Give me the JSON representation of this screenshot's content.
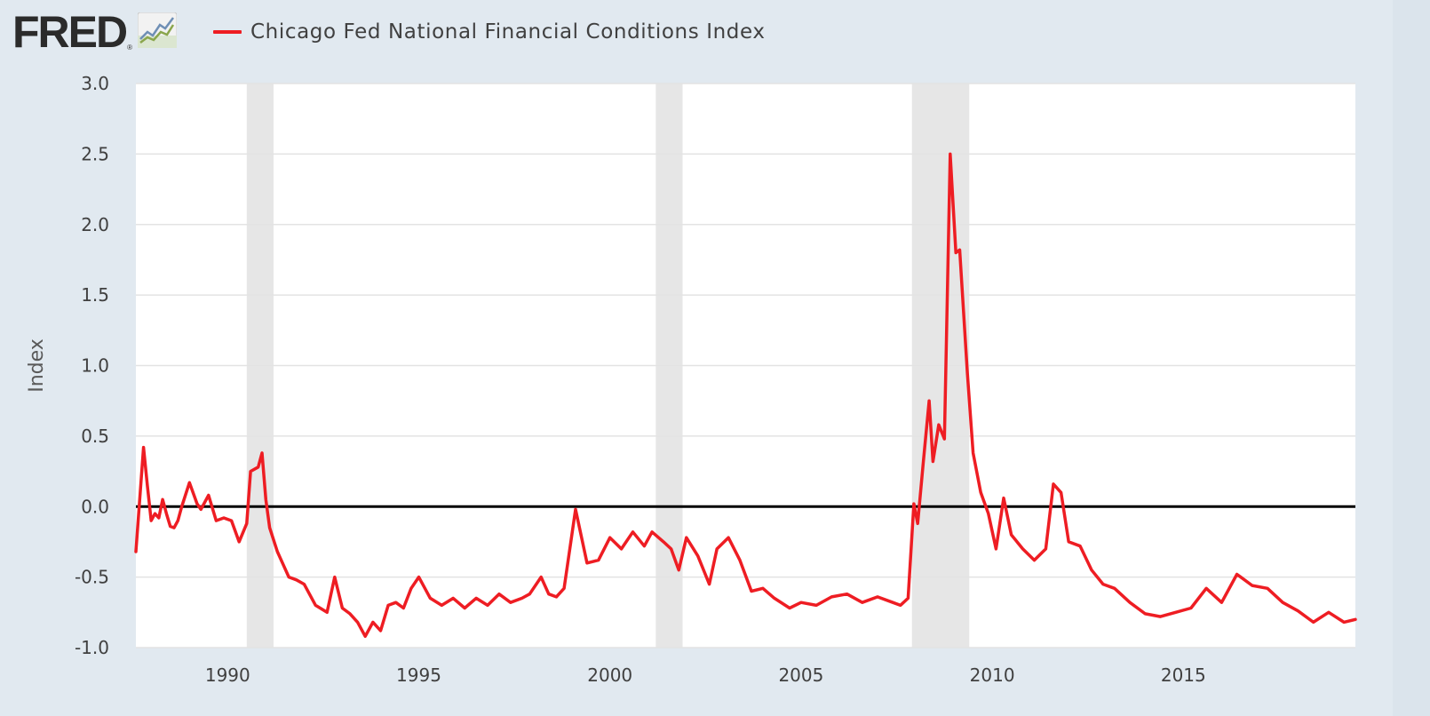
{
  "header": {
    "logo_text": "FRED",
    "logo_reg_mark": "®",
    "logo_icon": "line-chart-icon",
    "legend_label": "Chicago Fed National Financial Conditions Index",
    "legend_color": "#ee1d23"
  },
  "colors": {
    "background": "#e1e9f0",
    "plot_background": "#ffffff",
    "gridline": "#e3e3e3",
    "recession_band": "#e6e6e6",
    "zero_line": "#000000",
    "series_line": "#ee1d23"
  },
  "chart_data": {
    "type": "line",
    "title": "Chicago Fed National Financial Conditions Index",
    "xlabel": "",
    "ylabel": "Index",
    "xlim": [
      1987.6,
      2019.5
    ],
    "ylim": [
      -1.0,
      3.0
    ],
    "y_ticks": [
      "3.0",
      "2.5",
      "2.0",
      "1.5",
      "1.0",
      "0.5",
      "0.0",
      "-0.5",
      "-1.0"
    ],
    "x_ticks": [
      "1990",
      "1995",
      "2000",
      "2005",
      "2010",
      "2015"
    ],
    "grid": true,
    "zero_line": true,
    "recessions": [
      [
        1990.5,
        1991.2
      ],
      [
        2001.2,
        2001.9
      ],
      [
        2007.9,
        2009.4
      ]
    ],
    "series": [
      {
        "name": "Chicago Fed National Financial Conditions Index",
        "x": [
          1987.6,
          1987.7,
          1987.8,
          1987.9,
          1988.0,
          1988.1,
          1988.2,
          1988.3,
          1988.4,
          1988.5,
          1988.6,
          1988.7,
          1988.8,
          1989.0,
          1989.2,
          1989.3,
          1989.5,
          1989.7,
          1989.9,
          1990.1,
          1990.3,
          1990.5,
          1990.6,
          1990.8,
          1990.9,
          1991.0,
          1991.1,
          1991.3,
          1991.6,
          1991.8,
          1992.0,
          1992.3,
          1992.6,
          1992.8,
          1993.0,
          1993.2,
          1993.4,
          1993.6,
          1993.8,
          1994.0,
          1994.2,
          1994.4,
          1994.6,
          1994.8,
          1995.0,
          1995.3,
          1995.6,
          1995.9,
          1996.2,
          1996.5,
          1996.8,
          1997.1,
          1997.4,
          1997.7,
          1997.9,
          1998.2,
          1998.4,
          1998.6,
          1998.8,
          1999.1,
          1999.4,
          1999.7,
          2000.0,
          2000.3,
          2000.6,
          2000.9,
          2001.1,
          2001.4,
          2001.6,
          2001.8,
          2002.0,
          2002.3,
          2002.6,
          2002.8,
          2003.1,
          2003.4,
          2003.7,
          2004.0,
          2004.3,
          2004.7,
          2005.0,
          2005.4,
          2005.8,
          2006.2,
          2006.6,
          2007.0,
          2007.4,
          2007.6,
          2007.8,
          2007.95,
          2008.05,
          2008.2,
          2008.35,
          2008.45,
          2008.6,
          2008.75,
          2008.9,
          2009.05,
          2009.15,
          2009.35,
          2009.5,
          2009.7,
          2009.9,
          2010.1,
          2010.3,
          2010.5,
          2010.8,
          2011.1,
          2011.4,
          2011.6,
          2011.8,
          2012.0,
          2012.3,
          2012.6,
          2012.9,
          2013.2,
          2013.6,
          2014.0,
          2014.4,
          2014.8,
          2015.2,
          2015.6,
          2016.0,
          2016.4,
          2016.8,
          2017.2,
          2017.6,
          2018.0,
          2018.4,
          2018.8,
          2019.2,
          2019.5
        ],
        "values": [
          -0.32,
          0.05,
          0.42,
          0.15,
          -0.1,
          -0.05,
          -0.08,
          0.05,
          -0.05,
          -0.14,
          -0.15,
          -0.1,
          0.0,
          0.17,
          0.02,
          -0.02,
          0.08,
          -0.1,
          -0.08,
          -0.1,
          -0.25,
          -0.12,
          0.25,
          0.28,
          0.38,
          0.05,
          -0.15,
          -0.32,
          -0.5,
          -0.52,
          -0.55,
          -0.7,
          -0.75,
          -0.5,
          -0.72,
          -0.76,
          -0.82,
          -0.92,
          -0.82,
          -0.88,
          -0.7,
          -0.68,
          -0.72,
          -0.58,
          -0.5,
          -0.65,
          -0.7,
          -0.65,
          -0.72,
          -0.65,
          -0.7,
          -0.62,
          -0.68,
          -0.65,
          -0.62,
          -0.5,
          -0.62,
          -0.64,
          -0.58,
          -0.02,
          -0.4,
          -0.38,
          -0.22,
          -0.3,
          -0.18,
          -0.28,
          -0.18,
          -0.25,
          -0.3,
          -0.45,
          -0.22,
          -0.35,
          -0.55,
          -0.3,
          -0.22,
          -0.38,
          -0.6,
          -0.58,
          -0.65,
          -0.72,
          -0.68,
          -0.7,
          -0.64,
          -0.62,
          -0.68,
          -0.64,
          -0.68,
          -0.7,
          -0.65,
          0.02,
          -0.12,
          0.32,
          0.75,
          0.32,
          0.58,
          0.48,
          2.5,
          1.8,
          1.82,
          0.95,
          0.38,
          0.1,
          -0.05,
          -0.3,
          0.06,
          -0.2,
          -0.3,
          -0.38,
          -0.3,
          0.16,
          0.1,
          -0.25,
          -0.28,
          -0.45,
          -0.55,
          -0.58,
          -0.68,
          -0.76,
          -0.78,
          -0.75,
          -0.72,
          -0.58,
          -0.68,
          -0.48,
          -0.56,
          -0.58,
          -0.68,
          -0.74,
          -0.82,
          -0.75,
          -0.82,
          -0.8
        ],
        "color": "#ee1d23"
      }
    ]
  }
}
